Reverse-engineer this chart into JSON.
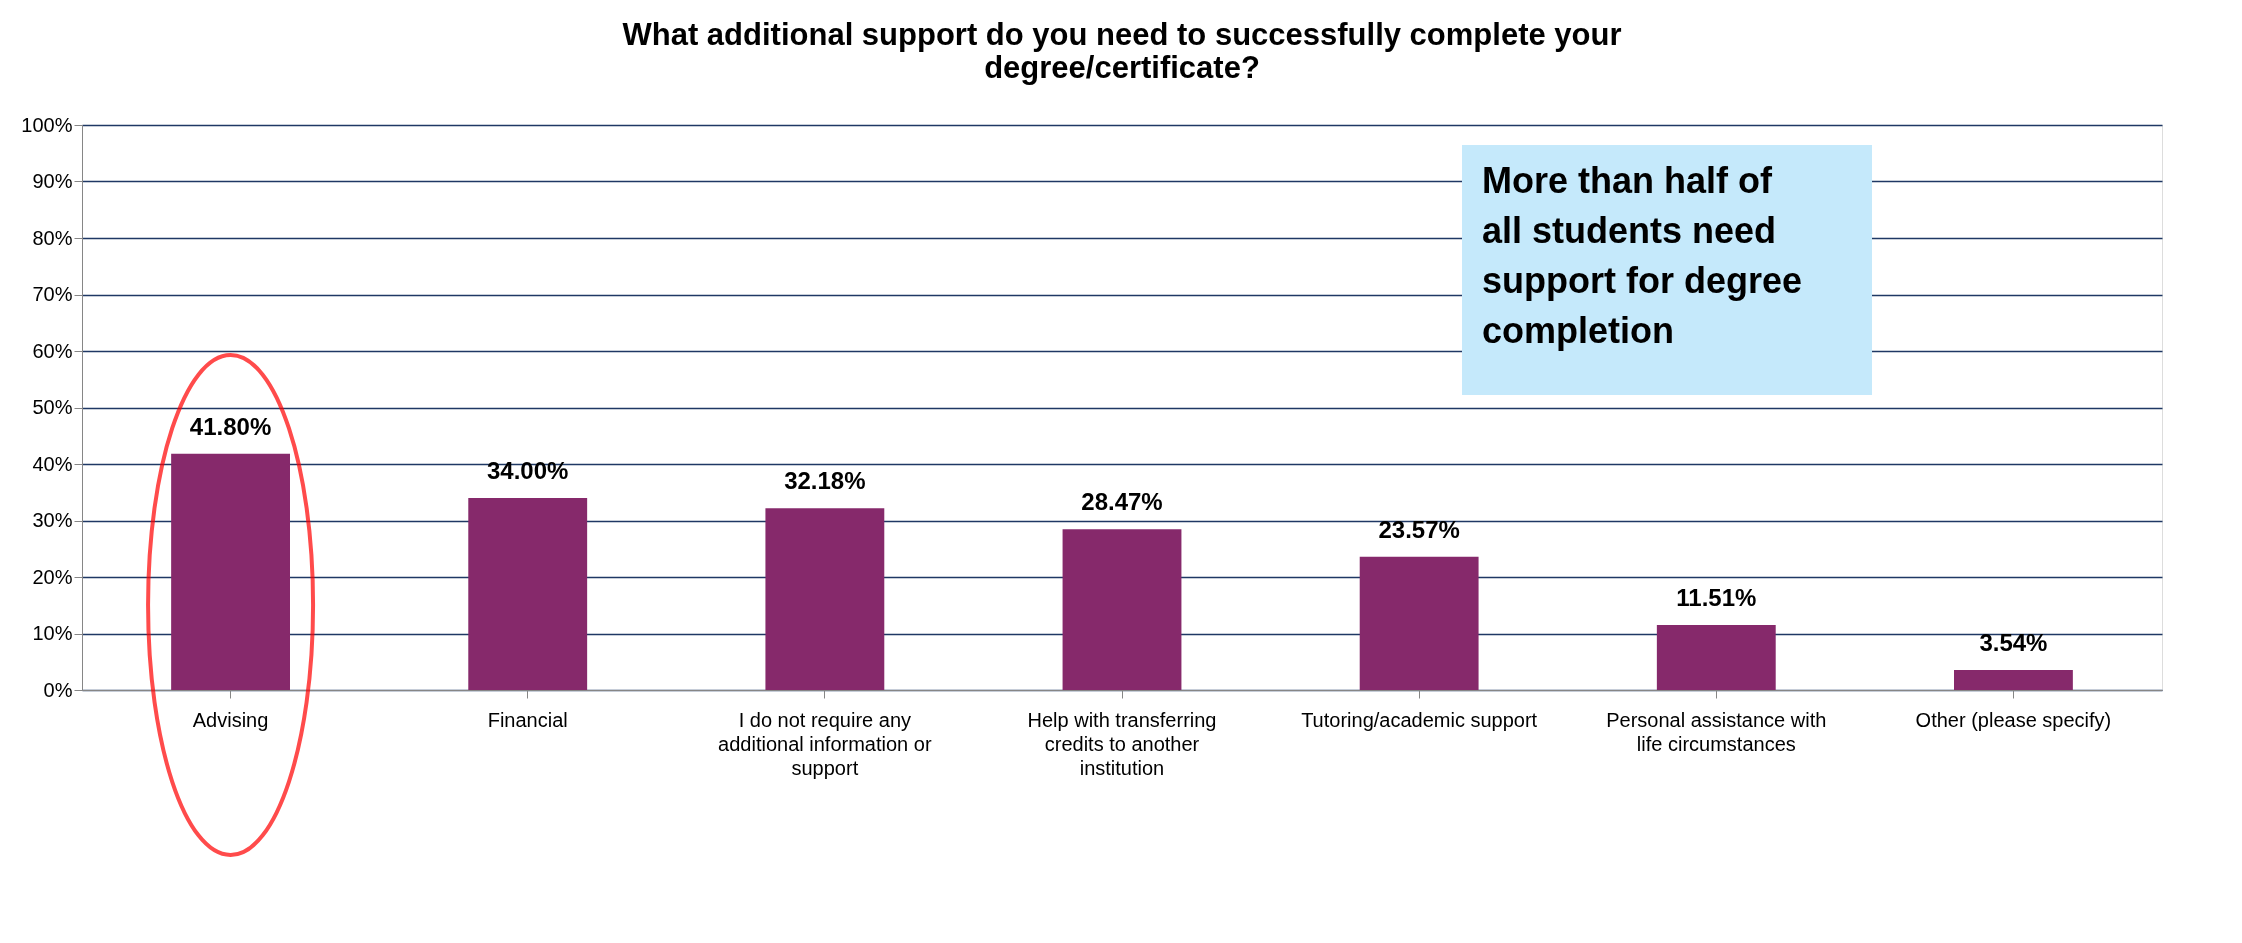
{
  "chart_data": {
    "type": "bar",
    "title": "What additional support do you need to successfully complete your degree/certificate?",
    "categories": [
      "Advising",
      "Financial",
      "I do not require any additional information or support",
      "Help with transferring credits to another institution",
      "Tutoring/academic support",
      "Personal assistance with life circumstances",
      "Other (please specify)"
    ],
    "values": [
      41.8,
      34.0,
      32.18,
      28.47,
      23.57,
      11.51,
      3.54
    ],
    "value_labels": [
      "41.80%",
      "34.00%",
      "32.18%",
      "28.47%",
      "23.57%",
      "11.51%",
      "3.54%"
    ],
    "color": "#86296b",
    "ylim": [
      0,
      100
    ],
    "yticks": [
      {
        "value": 0,
        "label": "0%"
      },
      {
        "value": 10,
        "label": "10%"
      },
      {
        "value": 20,
        "label": "20%"
      },
      {
        "value": 30,
        "label": "30%"
      },
      {
        "value": 40,
        "label": "40%"
      },
      {
        "value": 50,
        "label": "50%"
      },
      {
        "value": 60,
        "label": "60%"
      },
      {
        "value": 70,
        "label": "70%"
      },
      {
        "value": 80,
        "label": "80%"
      },
      {
        "value": 90,
        "label": "90%"
      },
      {
        "value": 100,
        "label": "100%"
      }
    ],
    "grid": "y",
    "annotations": [
      "More than half of all students need support for degree completion"
    ]
  }
}
